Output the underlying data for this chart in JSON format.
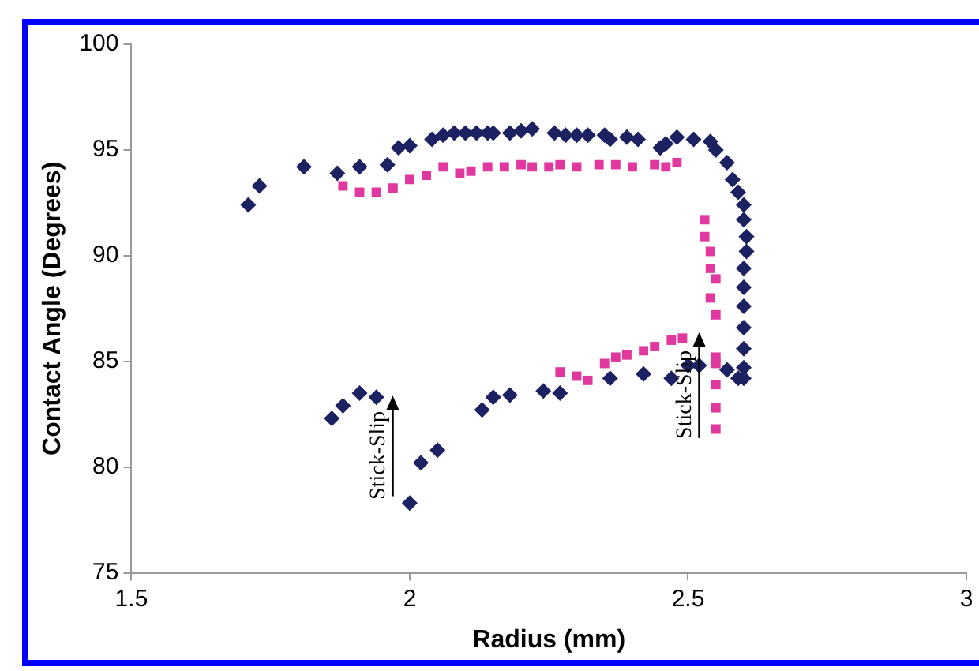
{
  "chart_data": {
    "type": "scatter",
    "xlabel": "Radius (mm)",
    "ylabel": "Contact Angle (Degrees)",
    "xlim": [
      1.5,
      3
    ],
    "xticks": [
      1.5,
      2,
      2.5,
      3
    ],
    "ylim": [
      75,
      100
    ],
    "yticks": [
      75,
      80,
      85,
      90,
      95,
      100
    ],
    "grid": false,
    "legend": false,
    "series": [
      {
        "color": "#1b2161",
        "marker": "diamond",
        "x": [
          1.71,
          1.73,
          1.81,
          1.87,
          1.91,
          1.96,
          1.98,
          2.0,
          2.04,
          2.06,
          2.08,
          2.1,
          2.12,
          2.14,
          2.15,
          2.18,
          2.2,
          2.22,
          2.26,
          2.28,
          2.3,
          2.32,
          2.35,
          2.36,
          2.39,
          2.41,
          2.45,
          2.46,
          2.48,
          2.51,
          2.54,
          2.55,
          2.57,
          2.58,
          2.59,
          2.6,
          2.6,
          2.605,
          2.605,
          2.6,
          2.6,
          2.6,
          2.6,
          2.6,
          2.6,
          2.6,
          2.59,
          2.57,
          2.52,
          2.5,
          2.47,
          2.42,
          2.36,
          2.27,
          2.24,
          2.18,
          2.15,
          2.13,
          2.05,
          2.02,
          2.0,
          1.94,
          1.91,
          1.88,
          1.86
        ],
        "values": [
          92.4,
          93.3,
          94.2,
          93.9,
          94.2,
          94.3,
          95.1,
          95.2,
          95.5,
          95.7,
          95.8,
          95.8,
          95.8,
          95.8,
          95.8,
          95.8,
          95.9,
          96.0,
          95.8,
          95.7,
          95.7,
          95.7,
          95.7,
          95.5,
          95.6,
          95.5,
          95.1,
          95.3,
          95.6,
          95.5,
          95.4,
          95.0,
          94.4,
          93.6,
          93.0,
          92.4,
          91.7,
          90.9,
          90.2,
          89.4,
          88.5,
          87.6,
          86.6,
          85.6,
          84.7,
          84.2,
          84.2,
          84.6,
          84.8,
          84.8,
          84.2,
          84.4,
          84.2,
          83.5,
          83.6,
          83.4,
          83.3,
          82.7,
          80.8,
          80.2,
          78.3,
          83.3,
          83.5,
          82.9,
          82.3
        ]
      },
      {
        "color": "#e0389e",
        "marker": "square",
        "x": [
          1.88,
          1.91,
          1.94,
          1.97,
          2.0,
          2.03,
          2.06,
          2.09,
          2.11,
          2.14,
          2.17,
          2.2,
          2.22,
          2.25,
          2.27,
          2.3,
          2.34,
          2.37,
          2.4,
          2.44,
          2.46,
          2.48,
          2.53,
          2.53,
          2.54,
          2.54,
          2.55,
          2.54,
          2.55,
          2.55,
          2.55,
          2.55,
          2.55,
          2.55,
          2.49,
          2.47,
          2.44,
          2.42,
          2.39,
          2.37,
          2.35,
          2.32,
          2.3,
          2.27
        ],
        "values": [
          93.3,
          93.0,
          93.0,
          93.2,
          93.6,
          93.8,
          94.2,
          93.9,
          94.0,
          94.2,
          94.2,
          94.3,
          94.2,
          94.2,
          94.3,
          94.2,
          94.3,
          94.3,
          94.2,
          94.3,
          94.2,
          94.4,
          91.7,
          90.9,
          90.2,
          89.4,
          88.9,
          88.0,
          87.2,
          85.2,
          84.9,
          83.9,
          82.8,
          81.8,
          86.1,
          86.0,
          85.7,
          85.5,
          85.3,
          85.2,
          84.9,
          84.1,
          84.3,
          84.5
        ]
      }
    ],
    "annotations": [
      "Stick-Slip",
      "Stick-Slip"
    ]
  }
}
